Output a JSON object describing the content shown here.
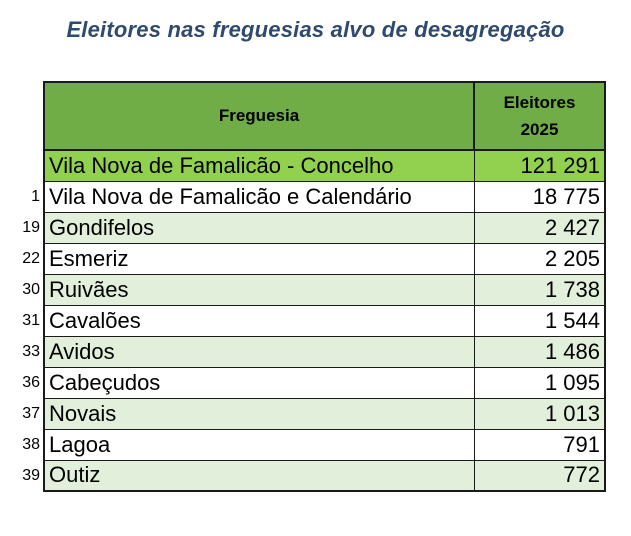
{
  "title": "Eleitores nas freguesias alvo de desagregação",
  "table": {
    "header": {
      "col1": "Freguesia",
      "col2_line1": "Eleitores",
      "col2_line2": "2025"
    },
    "total": {
      "name": "Vila Nova de Famalicão - Concelho",
      "value": "121 291"
    },
    "rows": [
      {
        "num": "1",
        "name": "Vila Nova de Famalicão e Calendário",
        "value": "18 775"
      },
      {
        "num": "19",
        "name": "Gondifelos",
        "value": "2 427"
      },
      {
        "num": "22",
        "name": "Esmeriz",
        "value": "2 205"
      },
      {
        "num": "30",
        "name": "Ruivães",
        "value": "1 738"
      },
      {
        "num": "31",
        "name": "Cavalões",
        "value": "1 544"
      },
      {
        "num": "33",
        "name": "Avidos",
        "value": "1 486"
      },
      {
        "num": "36",
        "name": "Cabeçudos",
        "value": "1 095"
      },
      {
        "num": "37",
        "name": "Novais",
        "value": "1 013"
      },
      {
        "num": "38",
        "name": "Lagoa",
        "value": "791"
      },
      {
        "num": "39",
        "name": "Outiz",
        "value": "772"
      }
    ]
  },
  "colors": {
    "header_bg": "#70ad47",
    "total_bg": "#92d050",
    "stripe_bg": "#e2efda",
    "title_color": "#2e4a6e"
  }
}
